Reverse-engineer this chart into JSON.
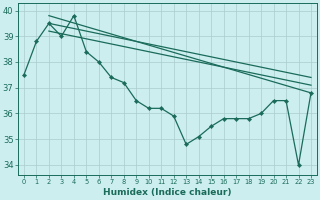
{
  "xlabel": "Humidex (Indice chaleur)",
  "background_color": "#cceeee",
  "grid_color": "#aacccc",
  "line_color": "#1a6b5a",
  "ylim": [
    33.6,
    40.3
  ],
  "xlim": [
    -0.5,
    23.5
  ],
  "yticks": [
    34,
    35,
    36,
    37,
    38,
    39,
    40
  ],
  "line1_x": [
    2,
    23
  ],
  "line1_y": [
    39.8,
    36.8
  ],
  "line2_x": [
    2,
    23
  ],
  "line2_y": [
    39.2,
    37.1
  ],
  "line3_x": [
    2,
    23
  ],
  "line3_y": [
    39.5,
    37.4
  ],
  "main_x": [
    0,
    1,
    2,
    3,
    4,
    5,
    6,
    7,
    8,
    9,
    10,
    11,
    12,
    13,
    14,
    15,
    16,
    17,
    18,
    19,
    20,
    21,
    22,
    23
  ],
  "main_y": [
    37.5,
    38.8,
    39.5,
    39.0,
    39.8,
    38.4,
    38.0,
    37.4,
    37.2,
    36.5,
    36.2,
    36.2,
    35.9,
    34.8,
    35.1,
    35.5,
    35.8,
    35.8,
    35.8,
    36.0,
    36.5,
    36.5,
    34.0,
    36.8
  ],
  "line_width": 0.9,
  "marker_size": 2.2
}
